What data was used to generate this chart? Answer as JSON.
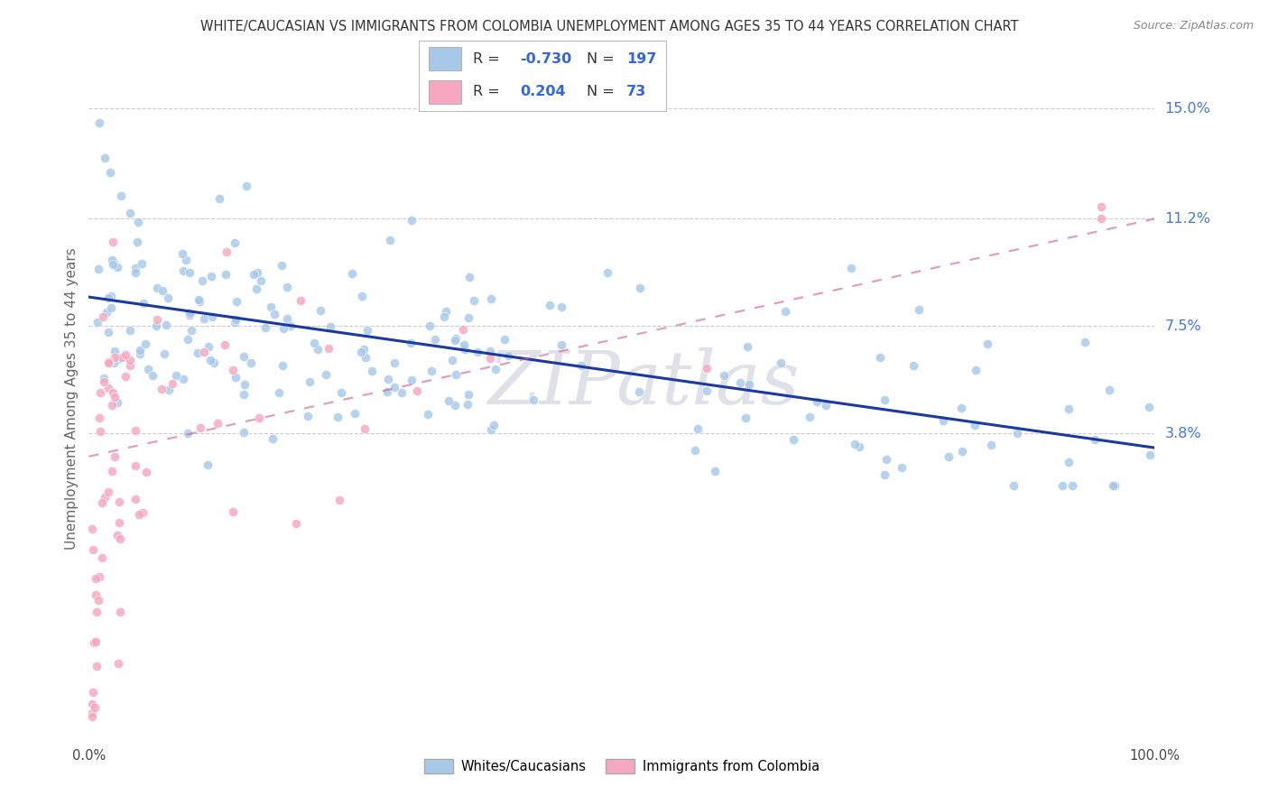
{
  "title": "WHITE/CAUCASIAN VS IMMIGRANTS FROM COLOMBIA UNEMPLOYMENT AMONG AGES 35 TO 44 YEARS CORRELATION CHART",
  "source": "Source: ZipAtlas.com",
  "ylabel": "Unemployment Among Ages 35 to 44 years",
  "ytick_labels": [
    "3.8%",
    "7.5%",
    "11.2%",
    "15.0%"
  ],
  "ytick_values": [
    0.038,
    0.075,
    0.112,
    0.15
  ],
  "legend_blue_r": "-0.730",
  "legend_blue_n": "197",
  "legend_pink_r": "0.204",
  "legend_pink_n": "73",
  "blue_scatter_color": "#A8C8E8",
  "pink_scatter_color": "#F5A8C0",
  "blue_line_color": "#1A3A9F",
  "pink_line_color": "#D06080",
  "watermark_color": "#E0E0E8",
  "grid_color": "#CCCCCC",
  "xtick_left": "0.0%",
  "xtick_right": "100.0%",
  "xlim": [
    0,
    100
  ],
  "ylim_lo": -0.068,
  "ylim_hi": 0.168,
  "blue_trend_y0": 0.085,
  "blue_trend_y1": 0.033,
  "pink_trend_y0": 0.03,
  "pink_trend_y1": 0.112,
  "legend_label_blue": "Whites/Caucasians",
  "legend_label_pink": "Immigrants from Colombia",
  "title_color": "#333333",
  "source_color": "#888888",
  "ylabel_color": "#666666",
  "ytick_color": "#4477DD",
  "xtick_color": "#444444"
}
